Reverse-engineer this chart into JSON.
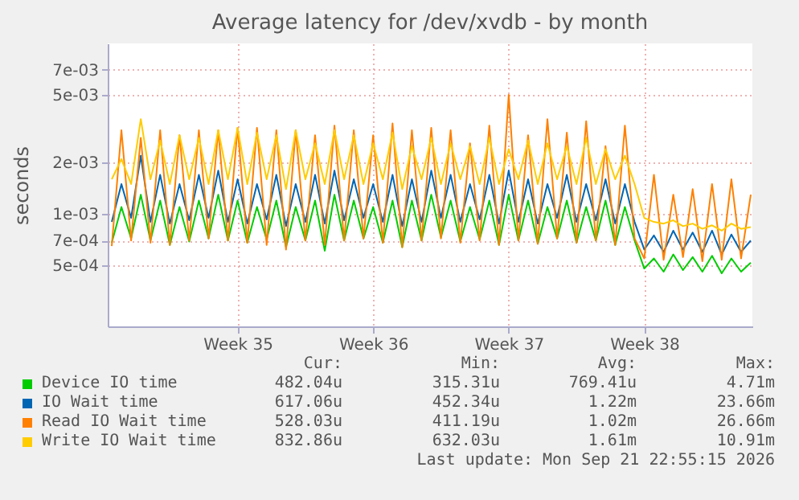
{
  "chart_data": {
    "type": "line",
    "title": "Average latency for /dev/xvdb - by month",
    "ylabel": "seconds",
    "log": "y",
    "grid": true,
    "legend": "bottom",
    "xlim": [
      "2026-08-20T19:00",
      "2026-09-23T02:00"
    ],
    "xticks": [
      {
        "value": "2026-08-27T12:00",
        "label": "Week 35"
      },
      {
        "value": "2026-09-03T12:00",
        "label": "Week 36"
      },
      {
        "value": "2026-09-10T12:00",
        "label": "Week 37"
      },
      {
        "value": "2026-09-17T12:00",
        "label": "Week 38"
      }
    ],
    "ylim": [
      0.00022,
      0.01
    ],
    "yticks": [
      {
        "value": 0.0005,
        "label": "5e-04"
      },
      {
        "value": 0.0007,
        "label": "7e-04"
      },
      {
        "value": 0.001,
        "label": "1e-03"
      },
      {
        "value": 0.002,
        "label": "2e-03"
      },
      {
        "value": 0.005,
        "label": "5e-03"
      },
      {
        "value": 0.007,
        "label": "7e-03"
      }
    ],
    "x": [
      "2026-08-21T00:00",
      "2026-08-21T12:00",
      "2026-08-22T00:00",
      "2026-08-22T12:00",
      "2026-08-23T00:00",
      "2026-08-23T12:00",
      "2026-08-24T00:00",
      "2026-08-24T12:00",
      "2026-08-25T00:00",
      "2026-08-25T12:00",
      "2026-08-26T00:00",
      "2026-08-26T12:00",
      "2026-08-27T00:00",
      "2026-08-27T12:00",
      "2026-08-28T00:00",
      "2026-08-28T12:00",
      "2026-08-29T00:00",
      "2026-08-29T12:00",
      "2026-08-30T00:00",
      "2026-08-30T12:00",
      "2026-08-31T00:00",
      "2026-08-31T12:00",
      "2026-09-01T00:00",
      "2026-09-01T12:00",
      "2026-09-02T00:00",
      "2026-09-02T12:00",
      "2026-09-03T00:00",
      "2026-09-03T12:00",
      "2026-09-04T00:00",
      "2026-09-04T12:00",
      "2026-09-05T00:00",
      "2026-09-05T12:00",
      "2026-09-06T00:00",
      "2026-09-06T12:00",
      "2026-09-07T00:00",
      "2026-09-07T12:00",
      "2026-09-08T00:00",
      "2026-09-08T12:00",
      "2026-09-09T00:00",
      "2026-09-09T12:00",
      "2026-09-10T00:00",
      "2026-09-10T12:00",
      "2026-09-11T00:00",
      "2026-09-11T12:00",
      "2026-09-12T00:00",
      "2026-09-12T12:00",
      "2026-09-13T00:00",
      "2026-09-13T12:00",
      "2026-09-14T00:00",
      "2026-09-14T12:00",
      "2026-09-15T00:00",
      "2026-09-15T12:00",
      "2026-09-16T00:00",
      "2026-09-16T12:00",
      "2026-09-17T00:00",
      "2026-09-17T12:00",
      "2026-09-18T00:00",
      "2026-09-18T12:00",
      "2026-09-19T00:00",
      "2026-09-19T12:00",
      "2026-09-20T00:00",
      "2026-09-20T12:00",
      "2026-09-21T00:00",
      "2026-09-21T12:00",
      "2026-09-22T00:00",
      "2026-09-22T12:00",
      "2026-09-23T00:00"
    ],
    "series": [
      {
        "name": "Device IO time",
        "color": "#00cc00",
        "values": [
          0.00068,
          0.0011,
          0.00072,
          0.0013,
          0.0007,
          0.0012,
          0.00066,
          0.0011,
          0.00069,
          0.0012,
          0.00072,
          0.0013,
          0.0007,
          0.0012,
          0.00068,
          0.0011,
          0.00071,
          0.0012,
          0.00064,
          0.0011,
          0.0007,
          0.0012,
          0.00061,
          0.0013,
          0.0007,
          0.0012,
          0.00072,
          0.0011,
          0.00068,
          0.0012,
          0.00064,
          0.0012,
          0.0007,
          0.0013,
          0.00073,
          0.0012,
          0.00069,
          0.0011,
          0.00071,
          0.0012,
          0.00066,
          0.0013,
          0.0007,
          0.0012,
          0.00067,
          0.0011,
          0.00072,
          0.0012,
          0.00068,
          0.0011,
          0.0007,
          0.0012,
          0.00066,
          0.0011,
          0.0007,
          0.00048,
          0.00055,
          0.00046,
          0.00058,
          0.00047,
          0.00056,
          0.00046,
          0.00057,
          0.00045,
          0.00055,
          0.00046,
          0.00052
        ]
      },
      {
        "name": "IO Wait time",
        "color": "#0066b3",
        "values": [
          0.0009,
          0.0015,
          0.00095,
          0.0022,
          0.0009,
          0.0017,
          0.00088,
          0.0015,
          0.00092,
          0.0017,
          0.00095,
          0.0018,
          0.0009,
          0.0016,
          0.00088,
          0.0015,
          0.00093,
          0.0017,
          0.00085,
          0.0015,
          0.0009,
          0.0017,
          0.00088,
          0.0018,
          0.00092,
          0.0016,
          0.00095,
          0.0015,
          0.0009,
          0.0017,
          0.00085,
          0.0016,
          0.0009,
          0.0018,
          0.00095,
          0.0017,
          0.0009,
          0.0015,
          0.00093,
          0.0017,
          0.00088,
          0.0018,
          0.0009,
          0.0016,
          0.00088,
          0.0015,
          0.00095,
          0.0017,
          0.0009,
          0.0015,
          0.00092,
          0.0016,
          0.00088,
          0.0015,
          0.0009,
          0.00062,
          0.00075,
          0.0006,
          0.0008,
          0.00062,
          0.00078,
          0.0006,
          0.0008,
          0.00058,
          0.00076,
          0.0006,
          0.0007
        ]
      },
      {
        "name": "Read IO Wait time",
        "color": "#ff8000",
        "values": [
          0.00065,
          0.0031,
          0.0007,
          0.0028,
          0.00068,
          0.0031,
          0.00066,
          0.0029,
          0.0007,
          0.0031,
          0.00072,
          0.0031,
          0.0007,
          0.0032,
          0.00068,
          0.0032,
          0.00066,
          0.0031,
          0.00062,
          0.0031,
          0.0007,
          0.0029,
          0.00066,
          0.0033,
          0.0007,
          0.0031,
          0.00072,
          0.0029,
          0.00068,
          0.0034,
          0.00064,
          0.0031,
          0.0007,
          0.0032,
          0.00072,
          0.0031,
          0.00068,
          0.0026,
          0.0007,
          0.0033,
          0.00066,
          0.005,
          0.0007,
          0.0029,
          0.00067,
          0.0036,
          0.00072,
          0.003,
          0.00068,
          0.0035,
          0.0007,
          0.0025,
          0.00066,
          0.0033,
          0.00072,
          0.00055,
          0.0017,
          0.00054,
          0.0013,
          0.00056,
          0.0014,
          0.00053,
          0.0015,
          0.00054,
          0.0016,
          0.00055,
          0.0013
        ]
      },
      {
        "name": "Write IO Wait time",
        "color": "#ffcc00",
        "values": [
          0.0016,
          0.0021,
          0.0015,
          0.0036,
          0.0016,
          0.0027,
          0.0015,
          0.0029,
          0.0016,
          0.0028,
          0.0015,
          0.0031,
          0.0016,
          0.0032,
          0.0015,
          0.003,
          0.0016,
          0.0029,
          0.0014,
          0.0031,
          0.0016,
          0.0026,
          0.0015,
          0.0031,
          0.0016,
          0.0029,
          0.0015,
          0.0026,
          0.0016,
          0.003,
          0.0014,
          0.0025,
          0.0016,
          0.0028,
          0.0015,
          0.0026,
          0.0016,
          0.0025,
          0.0015,
          0.0028,
          0.0015,
          0.0024,
          0.0016,
          0.0027,
          0.0015,
          0.0026,
          0.0016,
          0.0025,
          0.0015,
          0.0028,
          0.0015,
          0.0024,
          0.0016,
          0.0022,
          0.0015,
          0.00095,
          0.0009,
          0.00088,
          0.00092,
          0.00085,
          0.00088,
          0.00082,
          0.00086,
          0.0008,
          0.00088,
          0.00082,
          0.00084
        ]
      }
    ],
    "annotations": [
      "Cur:",
      "Min:",
      "Avg:",
      "Max:",
      "482.04u",
      "315.31u",
      "769.41u",
      "4.71m",
      "617.06u",
      "452.34u",
      "1.22m",
      "23.66m",
      "528.03u",
      "411.19u",
      "1.02m",
      "26.66m",
      "832.86u",
      "632.03u",
      "1.61m",
      "10.91m",
      "Last update: Mon Sep 21 22:55:15 2026"
    ]
  }
}
